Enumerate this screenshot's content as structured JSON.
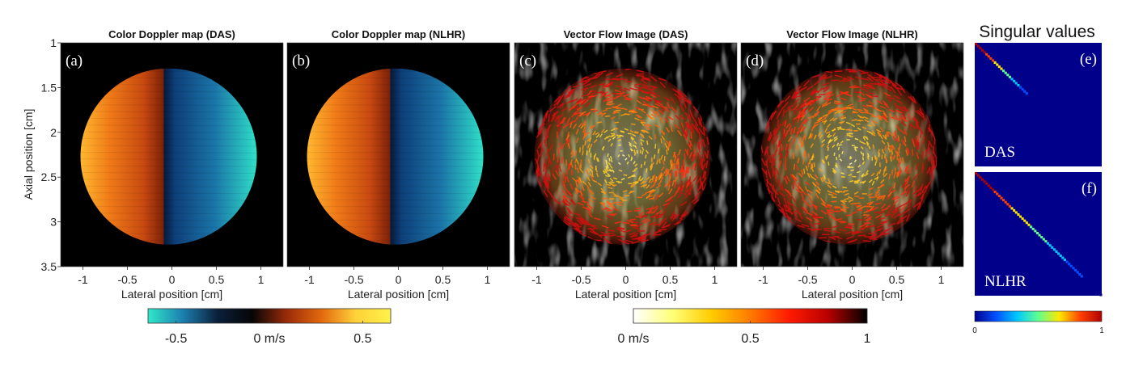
{
  "panels": [
    {
      "title": "Color Doppler map (DAS)",
      "label": "(a)",
      "kind": "doppler"
    },
    {
      "title": "Color Doppler map (NLHR)",
      "label": "(b)",
      "kind": "doppler"
    },
    {
      "title": "Vector Flow Image (DAS)",
      "label": "(c)",
      "kind": "vector"
    },
    {
      "title": "Vector Flow Image (NLHR)",
      "label": "(d)",
      "kind": "vector"
    }
  ],
  "axes": {
    "ylabel": "Axial position [cm]",
    "xlabel": "Lateral position [cm]",
    "yticks": [
      "1",
      "1.5",
      "2",
      "2.5",
      "3",
      "3.5"
    ],
    "ytick_values": [
      1,
      1.5,
      2,
      2.5,
      3,
      3.5
    ],
    "xticks": [
      "-1",
      "-0.5",
      "0",
      "0.5",
      "1"
    ],
    "xtick_values": [
      -1,
      -0.5,
      0,
      0.5,
      1
    ],
    "xlim": [
      -1.25,
      1.25
    ],
    "ylim": [
      1,
      3.5
    ]
  },
  "colorbar_doppler": {
    "ticks": [
      "-0.5",
      "0 m/s",
      "0.5"
    ],
    "tick_values": [
      -0.5,
      0,
      0.5
    ],
    "range": [
      -0.65,
      0.65
    ],
    "colors": [
      "#2fe8c8",
      "#1c7fb0",
      "#0b1f3a",
      "#050505",
      "#9a2a08",
      "#e2680e",
      "#ffd23a",
      "#fff14a"
    ]
  },
  "colorbar_vector": {
    "ticks": [
      "0 m/s",
      "0.5",
      "1"
    ],
    "tick_values": [
      0,
      0.5,
      1
    ],
    "range": [
      0,
      1
    ],
    "colors": [
      "#ffffff",
      "#ffff78",
      "#ffcc00",
      "#ff7a00",
      "#ff1a00",
      "#b80000",
      "#000000"
    ]
  },
  "singular_values": {
    "title": "Singular values",
    "panels": [
      {
        "label": "(e)",
        "name": "DAS",
        "diagonal_fraction": 0.5
      },
      {
        "label": "(f)",
        "name": "NLHR",
        "diagonal_fraction": 1.0
      }
    ],
    "colorbar_ticks": [
      "0",
      "1"
    ],
    "colors": [
      "#00008b",
      "#0050ff",
      "#00c8ff",
      "#60ff90",
      "#ffe800",
      "#ff4000",
      "#b00000"
    ]
  }
}
